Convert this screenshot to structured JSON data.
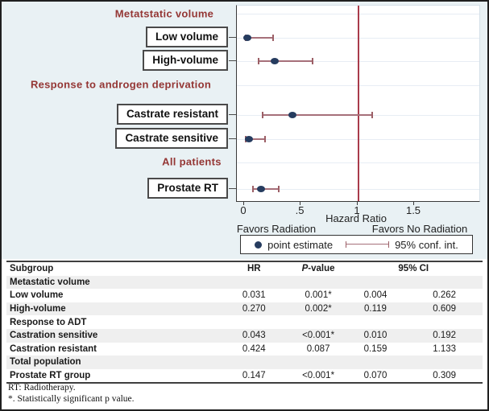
{
  "colors": {
    "plot_background": "#e9f1f4",
    "point_estimate": "#263c5f",
    "ci_cap": "#9c5f66",
    "ci_line": "#a6707a",
    "reference_line": "#a93b4b",
    "heading_text": "#943634",
    "table_band": "#efefef"
  },
  "chart_data": {
    "type": "forest",
    "xlabel": "Hazard Ratio",
    "x_ticks": [
      "0",
      ".5",
      "1",
      "1.5"
    ],
    "x_tick_values": [
      0,
      0.5,
      1,
      1.5
    ],
    "xlim": [
      -0.06,
      2.07
    ],
    "reference_line": 1,
    "grid": true,
    "caption_left": "Favors Radiation",
    "caption_right": "Favors No Radiation",
    "legend": [
      {
        "marker": "dot",
        "label": "point estimate"
      },
      {
        "marker": "ci-line",
        "label": "95% conf. int."
      }
    ],
    "groups": [
      {
        "heading": "Metatstatic volume",
        "rows": [
          {
            "label": "Low volume",
            "hr": 0.031,
            "ci_low": 0.004,
            "ci_high": 0.262
          },
          {
            "label": "High-volume",
            "hr": 0.27,
            "ci_low": 0.119,
            "ci_high": 0.609
          }
        ]
      },
      {
        "heading": "Response to androgen deprivation",
        "rows": [
          {
            "label": "Castrate resistant",
            "hr": 0.424,
            "ci_low": 0.159,
            "ci_high": 1.133
          },
          {
            "label": "Castrate sensitive",
            "hr": 0.043,
            "ci_low": 0.01,
            "ci_high": 0.192
          }
        ]
      },
      {
        "heading": "All patients",
        "rows": [
          {
            "label": "Prostate RT",
            "hr": 0.147,
            "ci_low": 0.07,
            "ci_high": 0.309
          }
        ]
      }
    ]
  },
  "table": {
    "columns": {
      "subgroup": "Subgroup",
      "hr": "HR",
      "p": "P-value",
      "ci": "95% CI"
    },
    "rows": [
      {
        "label": "Metastatic volume",
        "hr": "",
        "p": "",
        "ci_low": "",
        "ci_high": ""
      },
      {
        "label": "Low volume",
        "hr": "0.031",
        "p": "0.001*",
        "ci_low": "0.004",
        "ci_high": "0.262"
      },
      {
        "label": "High-volume",
        "hr": "0.270",
        "p": "0.002*",
        "ci_low": "0.119",
        "ci_high": "0.609"
      },
      {
        "label": "Response to ADT",
        "hr": "",
        "p": "",
        "ci_low": "",
        "ci_high": ""
      },
      {
        "label": "Castration sensitive",
        "hr": "0.043",
        "p": "<0.001*",
        "ci_low": "0.010",
        "ci_high": "0.192"
      },
      {
        "label": "Castration resistant",
        "hr": "0.424",
        "p": "0.087",
        "ci_low": "0.159",
        "ci_high": "1.133"
      },
      {
        "label": "Total population",
        "hr": "",
        "p": "",
        "ci_low": "",
        "ci_high": ""
      },
      {
        "label": "Prostate RT group",
        "hr": "0.147",
        "p": "<0.001*",
        "ci_low": "0.070",
        "ci_high": "0.309"
      }
    ],
    "footnotes": [
      "RT: Radiotherapy.",
      "*. Statistically significant p value."
    ]
  }
}
